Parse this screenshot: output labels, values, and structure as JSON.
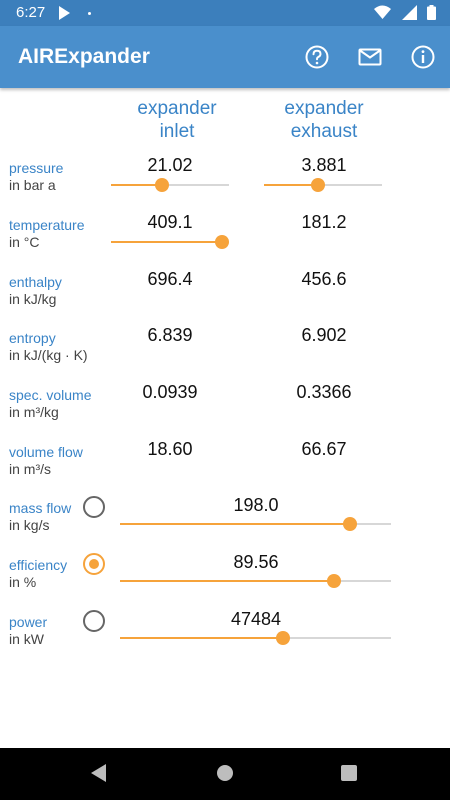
{
  "status_bar": {
    "time": "6:27"
  },
  "app_bar": {
    "title": "AIRExpander"
  },
  "columns": {
    "inlet": "expander\ninlet",
    "exhaust": "expander\nexhaust"
  },
  "rows": {
    "pressure": {
      "label": "pressure",
      "unit": "in bar a",
      "inlet": "21.02",
      "exhaust": "3.881",
      "inlet_slider": 0.43,
      "exhaust_slider": 0.46
    },
    "temperature": {
      "label": "temperature",
      "unit": "in °C",
      "inlet": "409.1",
      "exhaust": "181.2",
      "inlet_slider": 0.94
    },
    "enthalpy": {
      "label": "enthalpy",
      "unit": "in kJ/kg",
      "inlet": "696.4",
      "exhaust": "456.6"
    },
    "entropy": {
      "label": "entropy",
      "unit": "in kJ/(kg · K)",
      "inlet": "6.839",
      "exhaust": "6.902"
    },
    "spec_volume": {
      "label": "spec. volume",
      "unit": "in m³/kg",
      "inlet": "0.0939",
      "exhaust": "0.3366"
    },
    "volume_flow": {
      "label": "volume flow",
      "unit": "in m³/s",
      "inlet": "18.60",
      "exhaust": "66.67"
    }
  },
  "bottom_rows": {
    "mass_flow": {
      "label": "mass flow",
      "unit": "in kg/s",
      "value": "198.0",
      "selected": false,
      "slider": 0.85
    },
    "efficiency": {
      "label": "efficiency",
      "unit": "in %",
      "value": "89.56",
      "selected": true,
      "slider": 0.79
    },
    "power": {
      "label": "power",
      "unit": "in kW",
      "value": "47484",
      "selected": false,
      "slider": 0.6
    }
  },
  "colors": {
    "primary": "#4a8fcc",
    "status": "#3c7fbc",
    "accent": "#f6a33b",
    "label": "#3a84c7"
  }
}
